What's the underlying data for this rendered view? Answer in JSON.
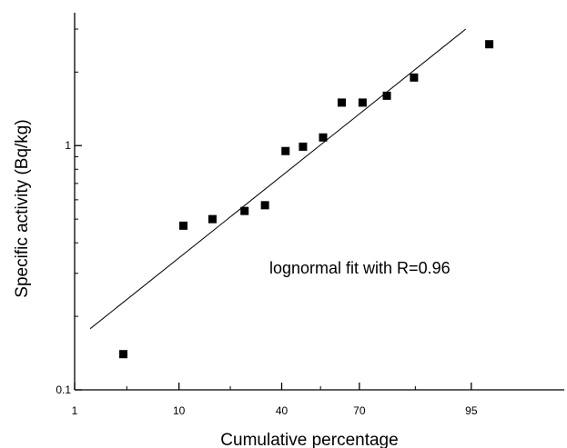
{
  "chart_data": {
    "type": "scatter",
    "title": "",
    "xlabel": "Cumulative percentage",
    "ylabel": "Specific activity (Bq/kg)",
    "x_scale": "probability",
    "y_scale": "log",
    "xlim": [
      1,
      99.5
    ],
    "ylim": [
      0.1,
      3.5
    ],
    "x_ticks": [
      1,
      10,
      40,
      70,
      95
    ],
    "x_tick_labels": [
      "1",
      "10",
      "40",
      "70",
      "95"
    ],
    "y_ticks": [
      0.1,
      1
    ],
    "y_tick_labels": [
      "0.1",
      "1"
    ],
    "grid": false,
    "legend": "none",
    "marker_color": "#000000",
    "series": [
      {
        "marker": "square",
        "x": [
          3.3,
          10.8,
          17.2,
          26.6,
          33.7,
          41.5,
          48.4,
          56.4,
          63.6,
          71.1,
          78.8,
          85.8,
          96.6
        ],
        "y": [
          0.14,
          0.47,
          0.5,
          0.54,
          0.57,
          0.95,
          0.99,
          1.08,
          1.5,
          1.5,
          1.6,
          1.9,
          2.6
        ]
      }
    ],
    "fit_line": {
      "x": [
        1.5,
        94.4
      ],
      "y": [
        0.178,
        3.0
      ]
    },
    "annotations": [
      {
        "text": "lognormal fit with R=0.96"
      }
    ]
  }
}
